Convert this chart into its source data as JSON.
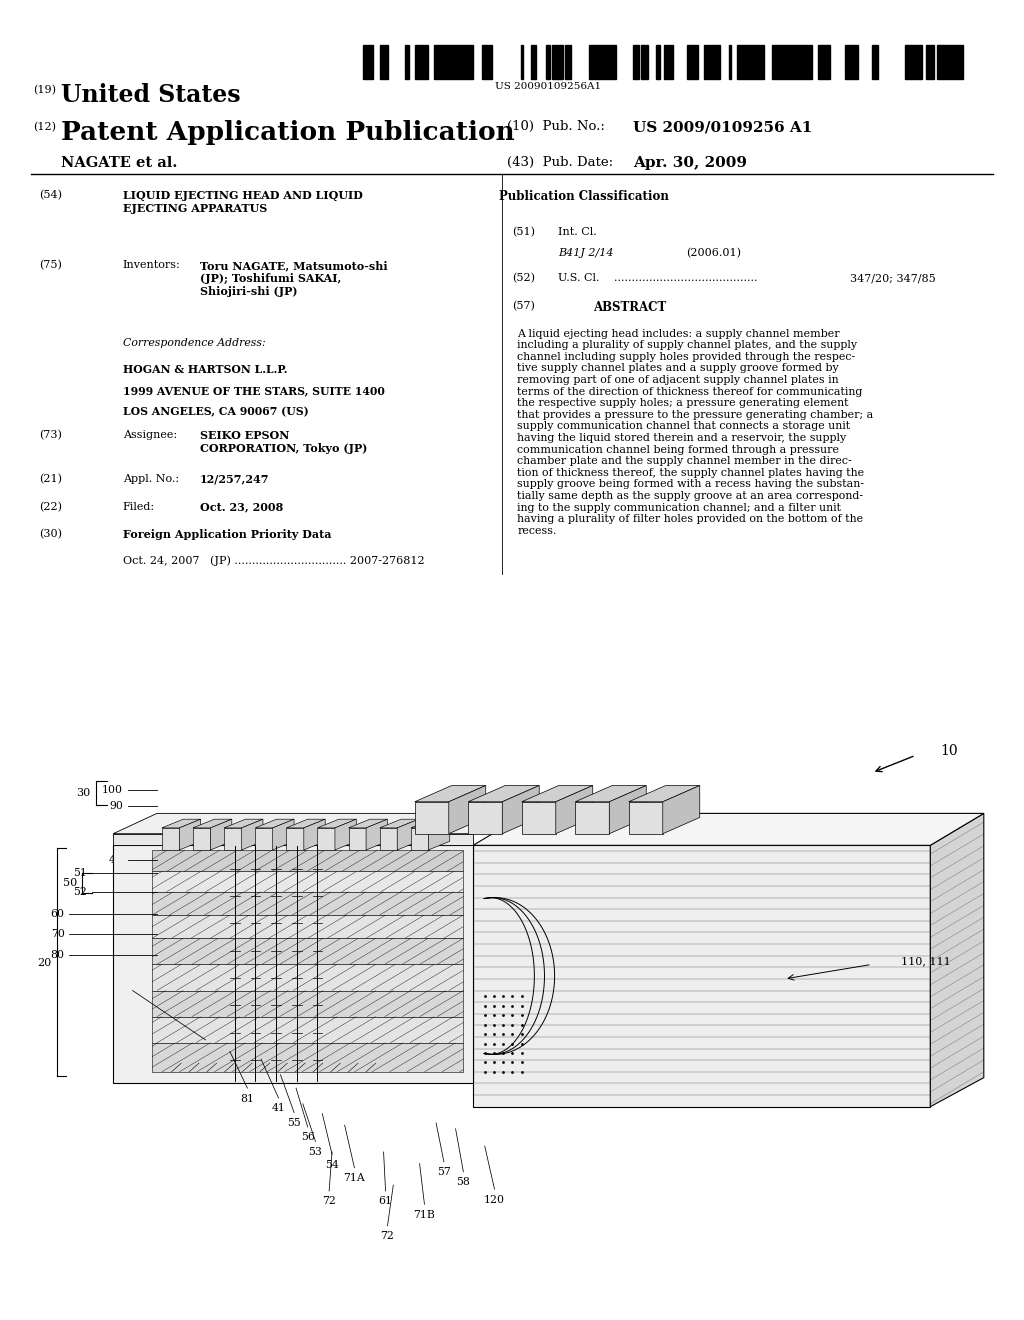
{
  "bg_color": "#ffffff",
  "barcode_text": "US 20090109256A1",
  "title_19_prefix": "(19)",
  "title_19": "United States",
  "title_12_prefix": "(12)",
  "title_12": "Patent Application Publication",
  "pub_no_label": "(10)  Pub. No.:",
  "pub_no_value": "US 2009/0109256 A1",
  "nagate": "NAGATE et al.",
  "pub_date_label": "(43)  Pub. Date:",
  "pub_date_value": "Apr. 30, 2009",
  "field_54_label": "(54)",
  "field_54": "LIQUID EJECTING HEAD AND LIQUID\nEJECTING APPARATUS",
  "field_75_label": "(75)",
  "field_75_name": "Inventors:",
  "field_75_value": "Toru NAGATE, Matsumoto-shi\n(JP); Toshifumi SAKAI,\nShiojiri-shi (JP)",
  "corr_label": "Correspondence Address:",
  "corr_line1": "HOGAN & HARTSON L.L.P.",
  "corr_line2": "1999 AVENUE OF THE STARS, SUITE 1400",
  "corr_line3": "LOS ANGELES, CA 90067 (US)",
  "field_73_label": "(73)",
  "field_73_name": "Assignee:",
  "field_73_value": "SEIKO EPSON\nCORPORATION, Tokyo (JP)",
  "field_21_label": "(21)",
  "field_21_name": "Appl. No.:",
  "field_21_value": "12/257,247",
  "field_22_label": "(22)",
  "field_22_name": "Filed:",
  "field_22_value": "Oct. 23, 2008",
  "field_30_label": "(30)",
  "field_30_name": "Foreign Application Priority Data",
  "field_30_value": "Oct. 24, 2007   (JP) ................................ 2007-276812",
  "pub_class_title": "Publication Classification",
  "field_51_label": "(51)",
  "field_51_name": "Int. Cl.",
  "field_51_class": "B41J 2/14",
  "field_51_year": "(2006.01)",
  "field_52_label": "(52)",
  "field_52_name": "U.S. Cl.",
  "field_52_dots": ".........................................",
  "field_52_value": "347/20; 347/85",
  "field_57_label": "(57)",
  "field_57_name": "ABSTRACT",
  "abstract_text": "A liquid ejecting head includes: a supply channel member\nincluding a plurality of supply channel plates, and the supply\nchannel including supply holes provided through the respec-\ntive supply channel plates and a supply groove formed by\nremoving part of one of adjacent supply channel plates in\nterms of the direction of thickness thereof for communicating\nthe respective supply holes; a pressure generating element\nthat provides a pressure to the pressure generating chamber; a\nsupply communication channel that connects a storage unit\nhaving the liquid stored therein and a reservoir, the supply\ncommunication channel being formed through a pressure\nchamber plate and the supply channel member in the direc-\ntion of thickness thereof, the supply channel plates having the\nsupply groove being formed with a recess having the substan-\ntially same depth as the supply groove at an area correspond-\ning to the supply communication channel; and a filter unit\nhaving a plurality of filter holes provided on the bottom of the\nrecess."
}
